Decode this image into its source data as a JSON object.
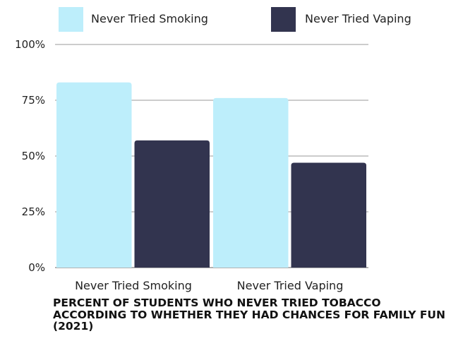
{
  "chart_data": {
    "type": "bar",
    "title": "PERCENT OF STUDENTS WHO NEVER TRIED TOBACCO ACCORDING TO WHETHER THEY HAD CHANCES FOR FAMILY FUN (2021)",
    "xlabel": "",
    "ylabel": "",
    "categories": [
      "Never Tried Smoking",
      "Never Tried Vaping"
    ],
    "series": [
      {
        "name": "Never Tried Smoking",
        "color": "#bdeefb",
        "values": [
          83,
          76
        ]
      },
      {
        "name": "Never Tried Vaping",
        "color": "#32344f",
        "values": [
          57,
          47
        ]
      }
    ],
    "ylim": [
      0,
      100
    ],
    "yticks": [
      0,
      25,
      50,
      75,
      100
    ],
    "ytick_labels": [
      "0%",
      "25%",
      "50%",
      "75%",
      "100%"
    ],
    "grid": true,
    "legend_position": "top"
  }
}
